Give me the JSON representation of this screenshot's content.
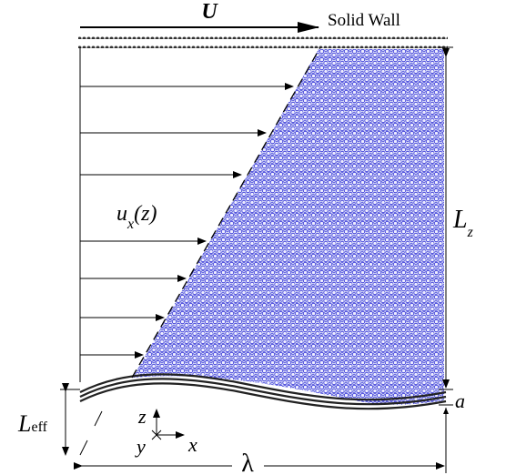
{
  "labels": {
    "velocity": "U",
    "wall": "Solid Wall",
    "profile": {
      "main": "u",
      "sub": "x",
      "arg": "(z)"
    },
    "height": {
      "main": "L",
      "sub": "z"
    },
    "effective_height": {
      "main": "L",
      "sub": "eff"
    },
    "amplitude": "a",
    "axis_z": "z",
    "axis_y": "y",
    "axis_x": "x",
    "wavelength": "λ"
  }
}
